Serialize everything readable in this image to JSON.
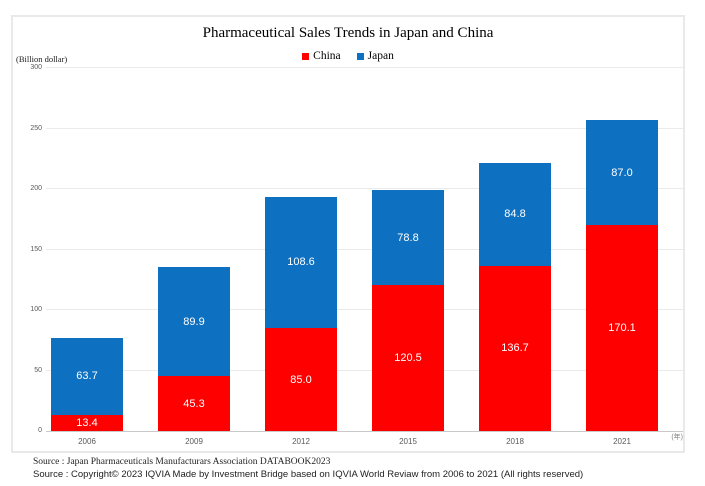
{
  "chart_data": {
    "type": "bar",
    "stacked": true,
    "title": "Pharmaceutical Sales Trends in Japan and China",
    "unit_label": "(Billion dollar)",
    "x_axis_unit": "(年)",
    "categories": [
      "2006",
      "2009",
      "2012",
      "2015",
      "2018",
      "2021"
    ],
    "series": [
      {
        "name": "China",
        "color": "#FE0000",
        "values": [
          13.4,
          45.3,
          85.0,
          120.5,
          136.7,
          170.1
        ]
      },
      {
        "name": "Japan",
        "color": "#0E70C0",
        "values": [
          63.7,
          89.9,
          108.6,
          78.8,
          84.8,
          87.0
        ]
      }
    ],
    "ylim": [
      0,
      300
    ],
    "yticks": [
      0,
      50,
      100,
      150,
      200,
      250,
      300
    ],
    "grid": true,
    "legend_position": "top",
    "value_label_color": "#ffffff"
  },
  "sources": {
    "line1": "Source : Japan Pharmaceuticals Manufacturars Association DATABOOK2023",
    "line2": "Source : Copyright© 2023 IQVIA Made by Investment Bridge based on IQVIA World Reviaw from 2006 to 2021 (All rights reserved)"
  }
}
